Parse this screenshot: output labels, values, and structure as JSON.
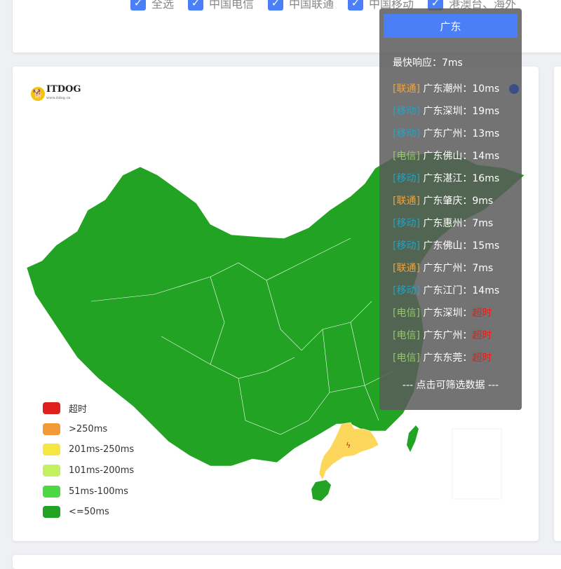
{
  "filters": [
    {
      "label": "全选",
      "checked": true
    },
    {
      "label": "中国电信",
      "checked": true
    },
    {
      "label": "中国联通",
      "checked": true
    },
    {
      "label": "中国移动",
      "checked": true
    },
    {
      "label": "港澳台、海外",
      "checked": true
    }
  ],
  "logo": {
    "text": "ITDOG",
    "url_text": "www.itdog.cn"
  },
  "legend": [
    {
      "label": "超时",
      "color": "#e0201c"
    },
    {
      "label": ">250ms",
      "color": "#f39a38"
    },
    {
      "label": "201ms-250ms",
      "color": "#f5e642"
    },
    {
      "label": "101ms-200ms",
      "color": "#c1f160"
    },
    {
      "label": "51ms-100ms",
      "color": "#4cd843"
    },
    {
      "label": "<=50ms",
      "color": "#22a323"
    }
  ],
  "map": {
    "default_color": "#22a323",
    "highlight_region": "广东",
    "highlight_color": "#fdd75c"
  },
  "tooltip": {
    "title": "广东",
    "fastest": "最快响应：7ms",
    "footer": "--- 点击可筛选数据 ---",
    "isp_colors": {
      "联通": "#f2a33a",
      "移动": "#1fa5c4",
      "电信": "#95c860"
    },
    "timeout_color": "#e0201c",
    "rows": [
      {
        "isp": "[联通]",
        "isp_key": "联通",
        "place": "广东潮州：",
        "value": "10ms"
      },
      {
        "isp": "[移动]",
        "isp_key": "移动",
        "place": "广东深圳：",
        "value": "19ms"
      },
      {
        "isp": "[移动]",
        "isp_key": "移动",
        "place": "广东广州：",
        "value": "13ms"
      },
      {
        "isp": "[电信]",
        "isp_key": "电信",
        "place": "广东佛山：",
        "value": "14ms"
      },
      {
        "isp": "[移动]",
        "isp_key": "移动",
        "place": "广东湛江：",
        "value": "16ms"
      },
      {
        "isp": "[联通]",
        "isp_key": "联通",
        "place": "广东肇庆：",
        "value": "9ms"
      },
      {
        "isp": "[移动]",
        "isp_key": "移动",
        "place": "广东惠州：",
        "value": "7ms"
      },
      {
        "isp": "[移动]",
        "isp_key": "移动",
        "place": "广东佛山：",
        "value": "15ms"
      },
      {
        "isp": "[联通]",
        "isp_key": "联通",
        "place": "广东广州：",
        "value": "7ms"
      },
      {
        "isp": "[移动]",
        "isp_key": "移动",
        "place": "广东江门：",
        "value": "14ms"
      },
      {
        "isp": "[电信]",
        "isp_key": "电信",
        "place": "广东深圳：",
        "value": "超时",
        "timeout": true
      },
      {
        "isp": "[电信]",
        "isp_key": "电信",
        "place": "广东广州：",
        "value": "超时",
        "timeout": true
      },
      {
        "isp": "[电信]",
        "isp_key": "电信",
        "place": "广东东莞：",
        "value": "超时",
        "timeout": true
      }
    ]
  }
}
